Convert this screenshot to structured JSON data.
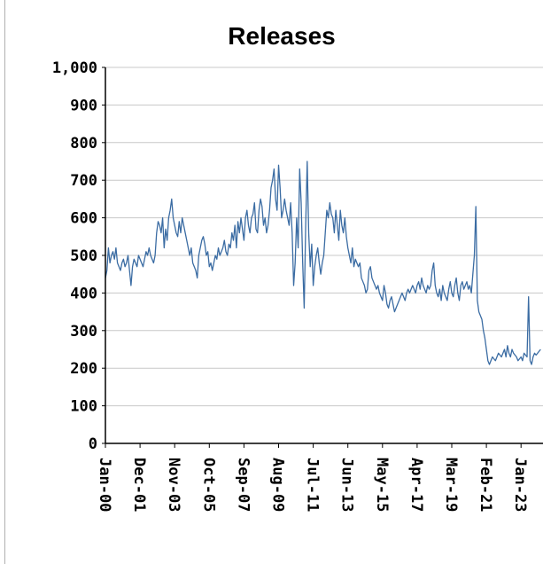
{
  "chart_data": {
    "type": "line",
    "title": "Releases",
    "categories": [
      "Jan-00",
      null,
      null,
      null,
      null,
      null,
      null,
      null,
      null,
      null,
      null,
      null,
      null,
      null,
      null,
      null,
      null,
      null,
      null,
      null,
      null,
      null,
      null,
      "Dec-01",
      null,
      null,
      null,
      null,
      null,
      null,
      null,
      null,
      null,
      null,
      null,
      null,
      null,
      null,
      null,
      null,
      null,
      null,
      null,
      null,
      null,
      null,
      "Nov-03",
      null,
      null,
      null,
      null,
      null,
      null,
      null,
      null,
      null,
      null,
      null,
      null,
      null,
      null,
      null,
      null,
      null,
      null,
      null,
      null,
      null,
      null,
      "Oct-05",
      null,
      null,
      null,
      null,
      null,
      null,
      null,
      null,
      null,
      null,
      null,
      null,
      null,
      null,
      null,
      null,
      null,
      null,
      null,
      null,
      null,
      null,
      "Sep-07",
      null,
      null,
      null,
      null,
      null,
      null,
      null,
      null,
      null,
      null,
      null,
      null,
      null,
      null,
      null,
      null,
      null,
      null,
      null,
      null,
      null,
      null,
      "Aug-09",
      null,
      null,
      null,
      null,
      null,
      null,
      null,
      null,
      null,
      null,
      null,
      null,
      null,
      null,
      null,
      null,
      null,
      null,
      null,
      null,
      null,
      null,
      "Jul-11",
      null,
      null,
      null,
      null,
      null,
      null,
      null,
      null,
      null,
      null,
      null,
      null,
      null,
      null,
      null,
      null,
      null,
      null,
      null,
      null,
      null,
      null,
      "Jun-13",
      null,
      null,
      null,
      null,
      null,
      null,
      null,
      null,
      null,
      null,
      null,
      null,
      null,
      null,
      null,
      null,
      null,
      null,
      null,
      null,
      null,
      null,
      "May-15",
      null,
      null,
      null,
      null,
      null,
      null,
      null,
      null,
      null,
      null,
      null,
      null,
      null,
      null,
      null,
      null,
      null,
      null,
      null,
      null,
      null,
      null,
      "Apr-17",
      null,
      null,
      null,
      null,
      null,
      null,
      null,
      null,
      null,
      null,
      null,
      null,
      null,
      null,
      null,
      null,
      null,
      null,
      null,
      null,
      null,
      null,
      "Mar-19",
      null,
      null,
      null,
      null,
      null,
      null,
      null,
      null,
      null,
      null,
      null,
      null,
      null,
      null,
      null,
      null,
      null,
      null,
      null,
      null,
      null,
      null,
      "Feb-21",
      null,
      null,
      null,
      null,
      null,
      null,
      null,
      null,
      null,
      null,
      null,
      null,
      null,
      null,
      null,
      null,
      null,
      null,
      null,
      null,
      null,
      null,
      "Jan-23",
      null,
      null,
      null,
      null,
      null,
      null,
      null,
      null,
      null,
      null,
      null,
      null,
      null
    ],
    "series": [
      {
        "name": "Releases",
        "color": "#3b6ca3",
        "values": [
          440,
          460,
          520,
          480,
          500,
          510,
          490,
          520,
          480,
          470,
          460,
          480,
          490,
          470,
          480,
          500,
          460,
          420,
          470,
          490,
          480,
          470,
          500,
          490,
          480,
          470,
          490,
          510,
          500,
          520,
          500,
          490,
          480,
          500,
          560,
          590,
          580,
          560,
          600,
          520,
          570,
          540,
          600,
          620,
          650,
          600,
          580,
          560,
          550,
          590,
          560,
          600,
          580,
          560,
          540,
          520,
          500,
          520,
          480,
          470,
          460,
          440,
          500,
          520,
          540,
          550,
          530,
          500,
          510,
          470,
          480,
          460,
          480,
          500,
          490,
          520,
          500,
          510,
          520,
          540,
          510,
          500,
          530,
          520,
          560,
          540,
          580,
          520,
          590,
          560,
          600,
          570,
          540,
          600,
          620,
          580,
          560,
          600,
          610,
          640,
          570,
          560,
          620,
          650,
          630,
          580,
          600,
          560,
          580,
          620,
          680,
          700,
          730,
          650,
          620,
          740,
          680,
          600,
          620,
          650,
          620,
          600,
          580,
          640,
          560,
          420,
          480,
          600,
          520,
          730,
          640,
          480,
          360,
          580,
          750,
          560,
          470,
          530,
          420,
          470,
          500,
          520,
          480,
          450,
          480,
          500,
          560,
          620,
          600,
          640,
          610,
          600,
          560,
          620,
          580,
          540,
          620,
          580,
          560,
          600,
          550,
          520,
          500,
          480,
          520,
          470,
          490,
          480,
          470,
          480,
          440,
          430,
          420,
          400,
          410,
          460,
          470,
          440,
          430,
          420,
          410,
          420,
          400,
          390,
          380,
          420,
          400,
          370,
          360,
          380,
          390,
          370,
          350,
          360,
          370,
          380,
          390,
          400,
          390,
          380,
          400,
          410,
          400,
          410,
          420,
          410,
          400,
          420,
          430,
          410,
          440,
          420,
          410,
          400,
          420,
          410,
          420,
          460,
          480,
          420,
          400,
          390,
          410,
          380,
          420,
          400,
          390,
          380,
          410,
          430,
          400,
          390,
          420,
          440,
          400,
          380,
          420,
          430,
          410,
          420,
          430,
          410,
          420,
          400,
          450,
          500,
          630,
          380,
          350,
          340,
          330,
          300,
          280,
          250,
          220,
          210,
          220,
          230,
          225,
          220,
          230,
          240,
          235,
          230,
          240,
          250,
          230,
          260,
          240,
          230,
          250,
          240,
          235,
          230,
          220,
          225,
          230,
          220,
          240,
          235,
          230,
          390,
          220,
          210,
          230,
          240,
          235,
          240,
          245,
          250
        ]
      }
    ],
    "ylim": [
      0,
      1000
    ],
    "yticks": [
      0,
      100,
      200,
      300,
      400,
      500,
      600,
      700,
      800,
      900,
      {
        "value": 1000,
        "label": "1,000"
      }
    ],
    "grid": true
  }
}
